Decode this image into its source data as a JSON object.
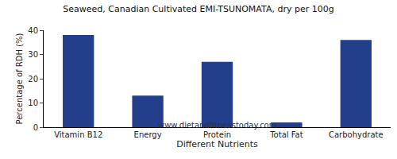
{
  "chart_data": {
    "type": "bar",
    "title": "Seaweed, Canadian Cultivated EMI-TSUNOMATA, dry per 100g",
    "subtitle": "www.dietandfitnesstoday.com",
    "x_label": "Different Nutrients",
    "y_label": "Percentage of RDH (%)",
    "categories": [
      "Vitamin B12",
      "Energy",
      "Protein",
      "Total Fat",
      "Carbohydrate"
    ],
    "values": [
      38,
      13,
      27,
      2,
      36
    ],
    "color": "#233e8b",
    "ylim": [
      0,
      40
    ],
    "yticks": [
      0,
      10,
      20,
      30,
      40
    ],
    "grid": false
  }
}
